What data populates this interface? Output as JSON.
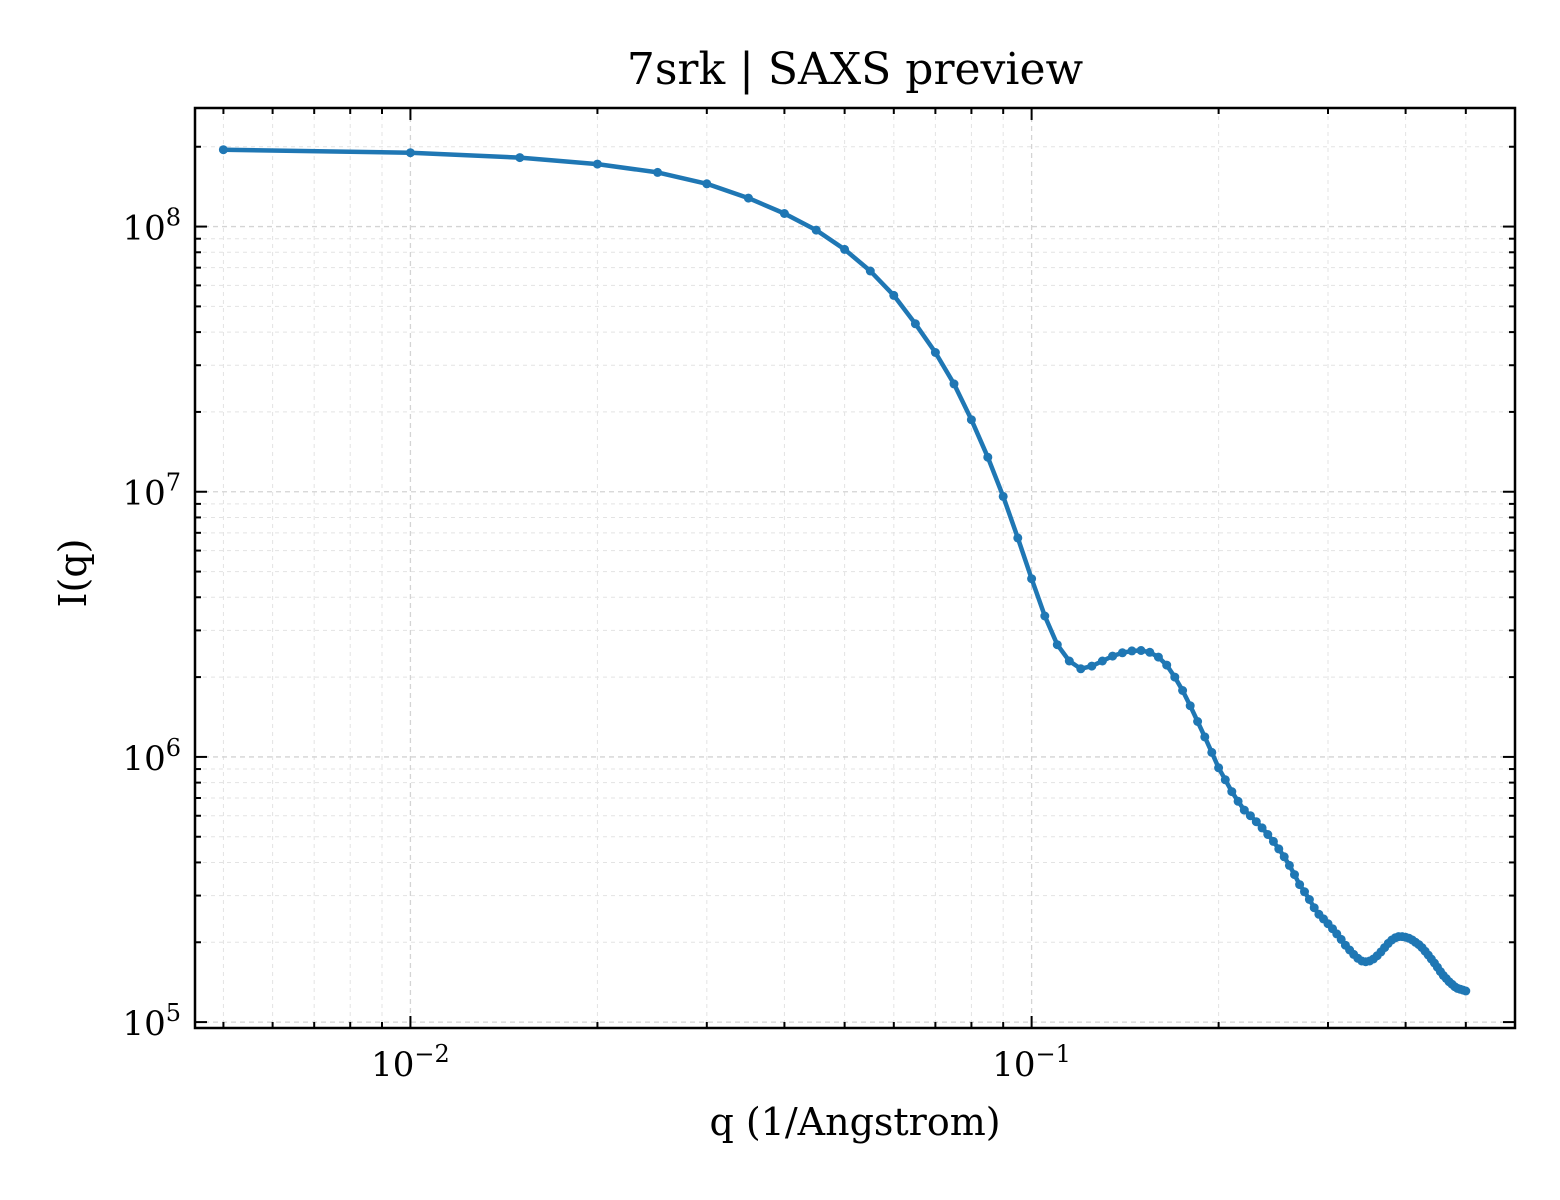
{
  "chart_data": {
    "type": "line",
    "title": "7srk | SAXS preview",
    "xlabel": "q (1/Angstrom)",
    "ylabel": "I(q)",
    "xscale": "log",
    "yscale": "log",
    "xlim": [
      0.0045,
      0.6
    ],
    "ylim": [
      95000,
      280000000
    ],
    "grid": true,
    "legend": "none",
    "color": "#1f77b4",
    "x_ticks": [
      {
        "base": "10",
        "exp": "−2",
        "value": 0.01
      },
      {
        "base": "10",
        "exp": "−1",
        "value": 0.1
      }
    ],
    "y_ticks": [
      {
        "base": "10",
        "exp": "5",
        "value": 100000
      },
      {
        "base": "10",
        "exp": "6",
        "value": 1000000
      },
      {
        "base": "10",
        "exp": "7",
        "value": 10000000
      },
      {
        "base": "10",
        "exp": "8",
        "value": 100000000
      }
    ],
    "series": [
      {
        "x": [
          0.005,
          0.01,
          0.015,
          0.02,
          0.025,
          0.03,
          0.035,
          0.04,
          0.045,
          0.05,
          0.055,
          0.06,
          0.065,
          0.07,
          0.075,
          0.08,
          0.085,
          0.09,
          0.095,
          0.1,
          0.105,
          0.11,
          0.115,
          0.12,
          0.125,
          0.13,
          0.135,
          0.14,
          0.145,
          0.15,
          0.155,
          0.16,
          0.165,
          0.17,
          0.175,
          0.18,
          0.185,
          0.19,
          0.195,
          0.2,
          0.205,
          0.21,
          0.215,
          0.22,
          0.225,
          0.23,
          0.235,
          0.24,
          0.245,
          0.25,
          0.255,
          0.26,
          0.265,
          0.27,
          0.275,
          0.28,
          0.285,
          0.29,
          0.295,
          0.3,
          0.305,
          0.31,
          0.315,
          0.32,
          0.325,
          0.33,
          0.335,
          0.34,
          0.345,
          0.35,
          0.355,
          0.36,
          0.365,
          0.37,
          0.375,
          0.38,
          0.385,
          0.39,
          0.395,
          0.4,
          0.405,
          0.41,
          0.415,
          0.42,
          0.425,
          0.43,
          0.435,
          0.44,
          0.445,
          0.45,
          0.455,
          0.46,
          0.465,
          0.47,
          0.475,
          0.48,
          0.485,
          0.49,
          0.495,
          0.5
        ],
        "y": [
          195000000,
          190000000,
          182000000,
          172000000,
          160000000,
          145000000,
          128000000,
          112000000,
          97000000,
          82000000,
          68000000,
          55000000,
          43000000,
          33500000,
          25500000,
          18700000,
          13500000,
          9600000,
          6700000,
          4700000,
          3400000,
          2650000,
          2300000,
          2150000,
          2200000,
          2300000,
          2400000,
          2470000,
          2510000,
          2520000,
          2480000,
          2380000,
          2220000,
          2000000,
          1780000,
          1560000,
          1360000,
          1190000,
          1040000,
          910000,
          820000,
          740000,
          680000,
          630000,
          600000,
          570000,
          540000,
          510000,
          480000,
          450000,
          420000,
          390000,
          360000,
          330000,
          310000,
          290000,
          270000,
          255000,
          245000,
          235000,
          225000,
          215000,
          205000,
          195000,
          187000,
          180000,
          174000,
          170000,
          169000,
          170000,
          173000,
          178000,
          184000,
          191000,
          198000,
          204000,
          208000,
          210000,
          210000,
          209000,
          207000,
          204000,
          200000,
          196000,
          191000,
          185000,
          179000,
          173000,
          167000,
          161000,
          155000,
          150000,
          146000,
          142000,
          139000,
          136000,
          134000,
          133000,
          132000,
          131000
        ]
      }
    ]
  }
}
